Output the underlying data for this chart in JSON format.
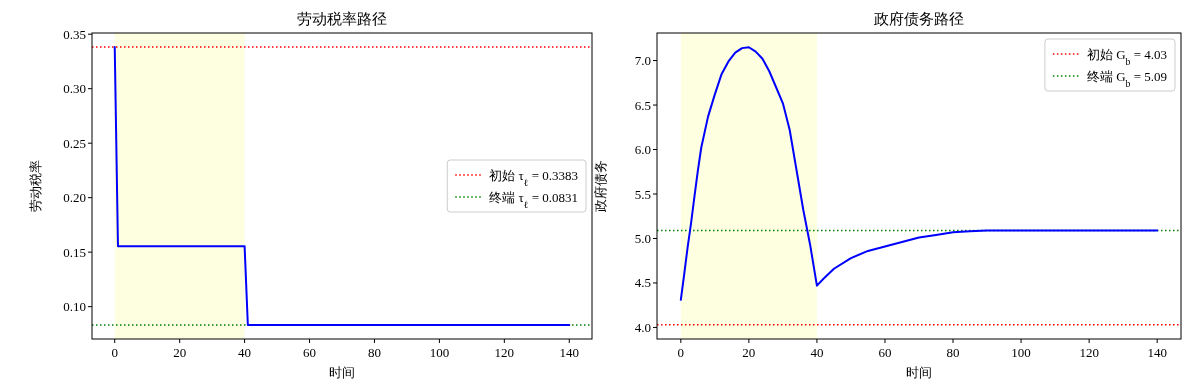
{
  "chart_data": [
    {
      "type": "line",
      "title": "劳动税率路径",
      "xlabel": "时间",
      "ylabel": "劳动税率",
      "x": [
        0,
        1,
        40,
        41,
        140
      ],
      "series": [
        {
          "color": "#0000ff",
          "values": [
            0.3383,
            0.1555,
            0.1555,
            0.0831,
            0.0831
          ]
        }
      ],
      "xlim": [
        -7,
        147
      ],
      "xticks": [
        0,
        20,
        40,
        60,
        80,
        100,
        120,
        140
      ],
      "ylim": [
        0.0703,
        0.3511
      ],
      "yticks": [
        {
          "value": 0.1,
          "label": "0.10"
        },
        {
          "value": 0.15,
          "label": "0.15"
        },
        {
          "value": 0.2,
          "label": "0.20"
        },
        {
          "value": 0.25,
          "label": "0.25"
        },
        {
          "value": 0.3,
          "label": "0.30"
        },
        {
          "value": 0.35,
          "label": "0.35"
        }
      ],
      "ref_lines": [
        {
          "axis": "y",
          "value": 0.3383,
          "label": "初始 τ$_{ℓ}$ = 0.3383",
          "color": "#ff0000",
          "line_style": "dotted"
        },
        {
          "axis": "y",
          "value": 0.0831,
          "label": "终端 τ$_{ℓ}$ = 0.0831",
          "color": "#008000",
          "line_style": "dotted"
        }
      ],
      "bands": [
        {
          "axis": "x",
          "from": 0,
          "to": 40,
          "color": "#fefee0"
        }
      ],
      "legend": "right",
      "marker": "none",
      "line_style": "solid"
    },
    {
      "type": "line",
      "title": "政府债务路径",
      "xlabel": "时间",
      "ylabel": "政府债务",
      "x": [
        0,
        1,
        2,
        3,
        4,
        5,
        6,
        8,
        10,
        12,
        14,
        16,
        18,
        20,
        22,
        24,
        26,
        28,
        30,
        32,
        34,
        36,
        38,
        40,
        42,
        45,
        50,
        55,
        60,
        65,
        70,
        75,
        80,
        85,
        90,
        100,
        120,
        140
      ],
      "series": [
        {
          "color": "#0000ff",
          "values": [
            4.31,
            4.6,
            4.9,
            5.17,
            5.47,
            5.76,
            6.02,
            6.37,
            6.62,
            6.85,
            6.99,
            7.09,
            7.14,
            7.15,
            7.1,
            7.02,
            6.88,
            6.7,
            6.52,
            6.22,
            5.77,
            5.32,
            4.93,
            4.47,
            4.55,
            4.66,
            4.78,
            4.86,
            4.91,
            4.96,
            5.01,
            5.04,
            5.07,
            5.08,
            5.09,
            5.09,
            5.09,
            5.09
          ]
        }
      ],
      "xlim": [
        -7,
        147
      ],
      "xticks": [
        0,
        20,
        40,
        60,
        80,
        100,
        120,
        140
      ],
      "ylim": [
        3.87,
        7.31
      ],
      "yticks": [
        {
          "value": 4,
          "label": "4.0"
        },
        {
          "value": 4.5,
          "label": "4.5"
        },
        {
          "value": 5,
          "label": "5.0"
        },
        {
          "value": 5.5,
          "label": "5.5"
        },
        {
          "value": 6,
          "label": "6.0"
        },
        {
          "value": 6.5,
          "label": "6.5"
        },
        {
          "value": 7,
          "label": "7.0"
        }
      ],
      "ref_lines": [
        {
          "axis": "y",
          "value": 4.03,
          "label": "初始 G$_{b}$ = 4.03",
          "color": "#ff0000",
          "line_style": "dotted"
        },
        {
          "axis": "y",
          "value": 5.09,
          "label": "终端 G$_{b}$ = 5.09",
          "color": "#008000",
          "line_style": "dotted"
        }
      ],
      "bands": [
        {
          "axis": "x",
          "from": 0,
          "to": 40,
          "color": "#fefee0"
        }
      ],
      "legend": "top right",
      "marker": "none",
      "line_style": "solid"
    }
  ]
}
